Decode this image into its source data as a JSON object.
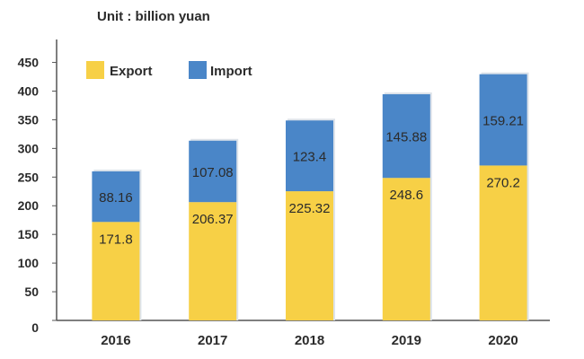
{
  "unit_label": "Unit : billion yuan",
  "chart_data": {
    "type": "bar",
    "stacked": true,
    "categories": [
      "2016",
      "2017",
      "2018",
      "2019",
      "2020"
    ],
    "series": [
      {
        "name": "Export",
        "color": "#f7d046",
        "values": [
          171.8,
          206.37,
          225.32,
          248.6,
          270.2
        ],
        "labels": [
          "171.8",
          "206.37",
          "225.32",
          "248.6",
          "270.2"
        ]
      },
      {
        "name": "Import",
        "color": "#4a86c8",
        "values": [
          88.16,
          107.08,
          123.4,
          145.88,
          159.21
        ],
        "labels": [
          "88.16",
          "107.08",
          "123.4",
          "145.88",
          "159.21"
        ]
      }
    ],
    "yticks": [
      0,
      50,
      100,
      150,
      200,
      250,
      300,
      350,
      400,
      450
    ],
    "ylim": [
      0,
      490
    ],
    "legend_position": "top-left",
    "grid": false
  }
}
